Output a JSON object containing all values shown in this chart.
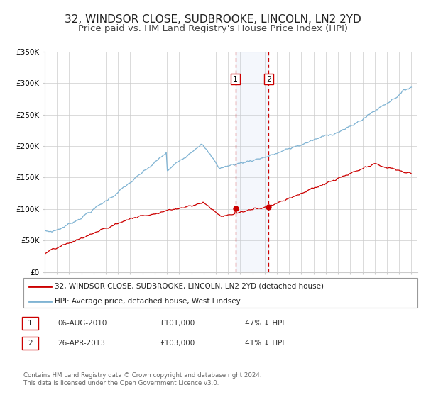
{
  "title": "32, WINDSOR CLOSE, SUDBROOKE, LINCOLN, LN2 2YD",
  "subtitle": "Price paid vs. HM Land Registry's House Price Index (HPI)",
  "bg_color": "#ffffff",
  "grid_color": "#cccccc",
  "red_line_color": "#cc0000",
  "blue_line_color": "#7fb3d3",
  "dashed_color": "#cc0000",
  "sale1_date_num": 2010.6,
  "sale2_date_num": 2013.32,
  "sale1_price": 101000,
  "sale2_price": 103000,
  "sale1_text": "06-AUG-2010",
  "sale1_price_text": "£101,000",
  "sale1_hpi_text": "47% ↓ HPI",
  "sale2_text": "26-APR-2013",
  "sale2_price_text": "£103,000",
  "sale2_hpi_text": "41% ↓ HPI",
  "legend_line1": "32, WINDSOR CLOSE, SUDBROOKE, LINCOLN, LN2 2YD (detached house)",
  "legend_line2": "HPI: Average price, detached house, West Lindsey",
  "footer1": "Contains HM Land Registry data © Crown copyright and database right 2024.",
  "footer2": "This data is licensed under the Open Government Licence v3.0.",
  "ylim": [
    0,
    350000
  ],
  "xlim_start": 1995.0,
  "xlim_end": 2025.5,
  "title_fontsize": 11,
  "subtitle_fontsize": 9.5
}
